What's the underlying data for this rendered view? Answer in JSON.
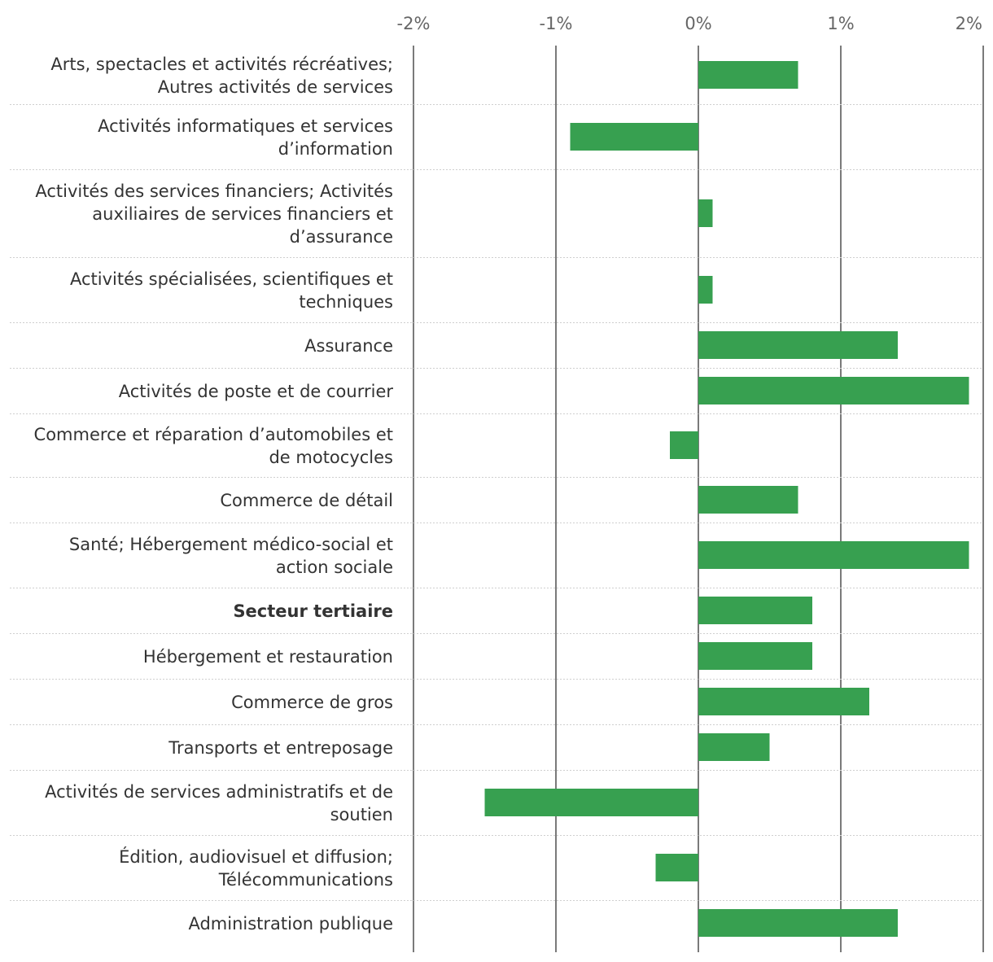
{
  "colors": {
    "bar": "#37a050",
    "grid": "#7a7a7a",
    "separator": "#cfcfcf",
    "text": "#333333",
    "tick": "#666666"
  },
  "chart_data": {
    "type": "bar",
    "orientation": "horizontal",
    "xlim": [
      -2,
      2
    ],
    "ticks": [
      {
        "value": -2,
        "label": "-2%"
      },
      {
        "value": -1,
        "label": "-1%"
      },
      {
        "value": 0,
        "label": "0%"
      },
      {
        "value": 1,
        "label": "1%"
      },
      {
        "value": 2,
        "label": "2%"
      }
    ],
    "grid": true,
    "categories": [
      {
        "lines": [
          "Arts, spectacles et activités récréatives;",
          "Autres activités de services"
        ],
        "value": 0.7,
        "bold": false
      },
      {
        "lines": [
          "Activités informatiques et services",
          "d’information"
        ],
        "value": -0.9,
        "bold": false
      },
      {
        "lines": [
          "Activités des services financiers; Activités",
          "auxiliaires de services financiers et",
          "d’assurance"
        ],
        "value": 0.1,
        "bold": false
      },
      {
        "lines": [
          "Activités spécialisées, scientifiques et",
          "techniques"
        ],
        "value": 0.1,
        "bold": false
      },
      {
        "lines": [
          "Assurance"
        ],
        "value": 1.4,
        "bold": false
      },
      {
        "lines": [
          "Activités de poste et de courrier"
        ],
        "value": 1.9,
        "bold": false
      },
      {
        "lines": [
          "Commerce et réparation d’automobiles et",
          "de motocycles"
        ],
        "value": -0.2,
        "bold": false
      },
      {
        "lines": [
          "Commerce de détail"
        ],
        "value": 0.7,
        "bold": false
      },
      {
        "lines": [
          "Santé; Hébergement médico-social et",
          "action sociale"
        ],
        "value": 1.9,
        "bold": false
      },
      {
        "lines": [
          "Secteur tertiaire"
        ],
        "value": 0.8,
        "bold": true
      },
      {
        "lines": [
          "Hébergement et restauration"
        ],
        "value": 0.8,
        "bold": false
      },
      {
        "lines": [
          "Commerce de gros"
        ],
        "value": 1.2,
        "bold": false
      },
      {
        "lines": [
          "Transports et entreposage"
        ],
        "value": 0.5,
        "bold": false
      },
      {
        "lines": [
          "Activités de services administratifs et de",
          "soutien"
        ],
        "value": -1.5,
        "bold": false
      },
      {
        "lines": [
          "Édition, audiovisuel et diffusion;",
          "Télécommunications"
        ],
        "value": -0.3,
        "bold": false
      },
      {
        "lines": [
          "Administration publique"
        ],
        "value": 1.4,
        "bold": false
      }
    ]
  }
}
